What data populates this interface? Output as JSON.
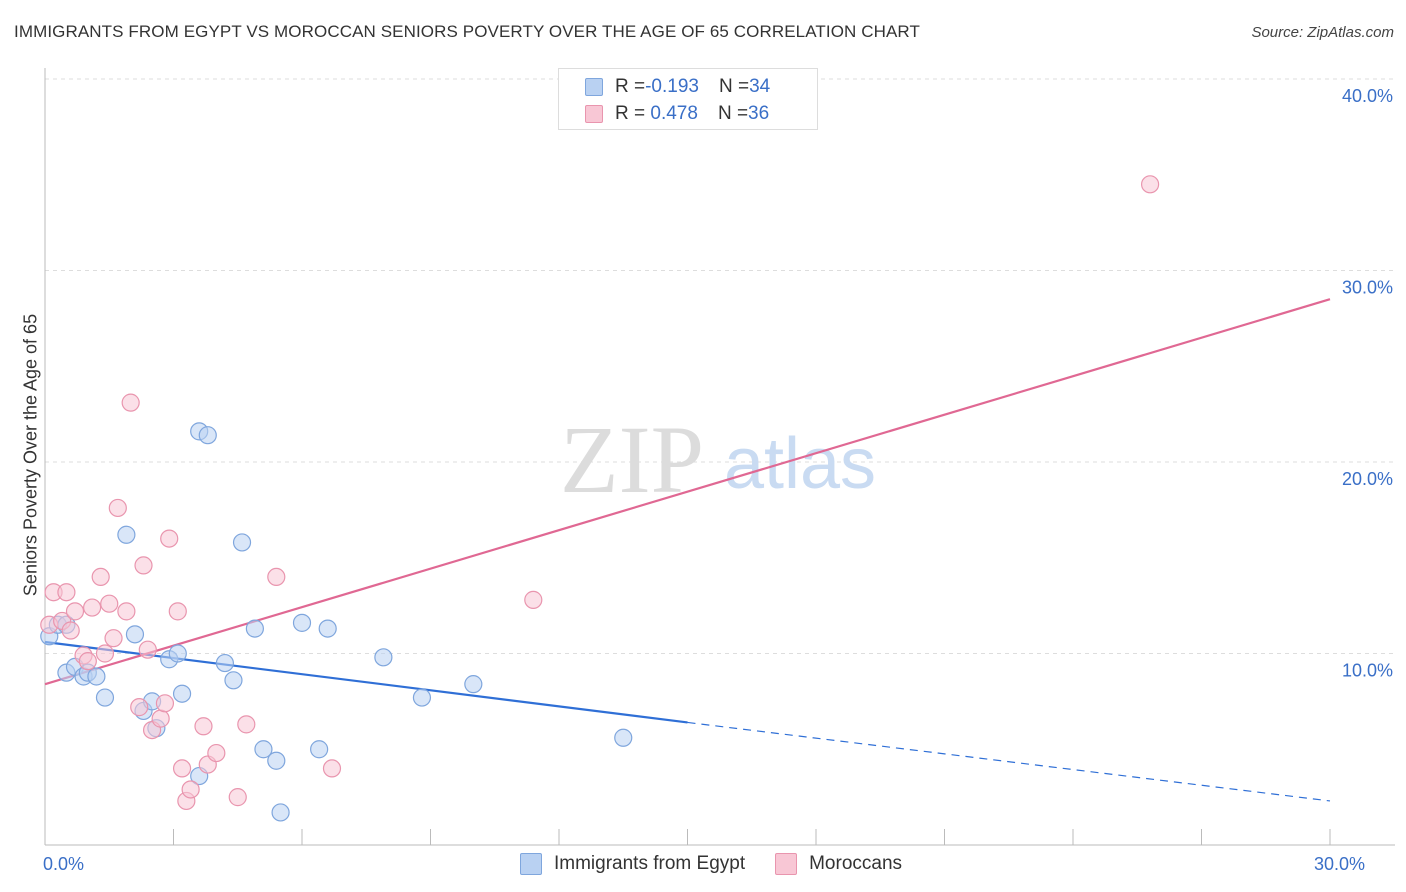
{
  "title": "IMMIGRANTS FROM EGYPT VS MOROCCAN SENIORS POVERTY OVER THE AGE OF 65 CORRELATION CHART",
  "source": "Source: ZipAtlas.com",
  "legend_top": {
    "row1": {
      "r_label": "R = ",
      "r_value": "-0.193",
      "n_label": "N = ",
      "n_value": "34"
    },
    "row2": {
      "r_label": "R = ",
      "r_value": " 0.478",
      "n_label": "N = ",
      "n_value": "36"
    }
  },
  "legend_bottom": [
    "Immigrants from Egypt",
    "Moroccans"
  ],
  "colors": {
    "blue_fill": "#b9d1f2",
    "blue_stroke": "#7fa6dd",
    "blue_line": "#2f6fd6",
    "pink_fill": "#f8c7d5",
    "pink_stroke": "#e995ae",
    "pink_line": "#e06893",
    "tick_label": "#3a6fc7"
  },
  "watermark": {
    "zip": "ZIP",
    "atlas": "atlas"
  },
  "chart_data": {
    "type": "scatter",
    "title": "IMMIGRANTS FROM EGYPT VS MOROCCAN SENIORS POVERTY OVER THE AGE OF 65 CORRELATION CHART",
    "xlabel": "",
    "ylabel": "Seniors Poverty Over the Age of 65",
    "xlim": [
      0,
      30
    ],
    "ylim": [
      0,
      40
    ],
    "x_tick_labels": [
      {
        "value": 0,
        "label": "0.0%"
      },
      {
        "value": 30,
        "label": "30.0%"
      }
    ],
    "x_minor_ticks": [
      3,
      6,
      9,
      12,
      15,
      18,
      21,
      24,
      27,
      30
    ],
    "y_ticks": [
      {
        "value": 10,
        "label": "10.0%"
      },
      {
        "value": 20,
        "label": "20.0%"
      },
      {
        "value": 30,
        "label": "30.0%"
      },
      {
        "value": 40,
        "label": "40.0%"
      }
    ],
    "grid": true,
    "series": [
      {
        "name": "Immigrants from Egypt",
        "color": "blue",
        "R": -0.193,
        "N": 34,
        "points": [
          [
            0.1,
            10.9
          ],
          [
            0.3,
            11.5
          ],
          [
            0.5,
            11.5
          ],
          [
            0.5,
            9.0
          ],
          [
            0.7,
            9.3
          ],
          [
            0.9,
            8.8
          ],
          [
            1.0,
            9.0
          ],
          [
            1.2,
            8.8
          ],
          [
            1.4,
            7.7
          ],
          [
            1.9,
            16.2
          ],
          [
            2.1,
            11.0
          ],
          [
            2.3,
            7.0
          ],
          [
            2.5,
            7.5
          ],
          [
            2.6,
            6.1
          ],
          [
            2.9,
            9.7
          ],
          [
            3.1,
            10.0
          ],
          [
            3.2,
            7.9
          ],
          [
            3.6,
            21.6
          ],
          [
            3.8,
            21.4
          ],
          [
            3.6,
            3.6
          ],
          [
            4.2,
            9.5
          ],
          [
            4.4,
            8.6
          ],
          [
            4.6,
            15.8
          ],
          [
            4.9,
            11.3
          ],
          [
            5.1,
            5.0
          ],
          [
            5.4,
            4.4
          ],
          [
            5.5,
            1.7
          ],
          [
            6.0,
            11.6
          ],
          [
            6.4,
            5.0
          ],
          [
            6.6,
            11.3
          ],
          [
            7.9,
            9.8
          ],
          [
            8.8,
            7.7
          ],
          [
            10.0,
            8.4
          ],
          [
            13.5,
            5.6
          ]
        ]
      },
      {
        "name": "Moroccans",
        "color": "pink",
        "R": 0.478,
        "N": 36,
        "points": [
          [
            0.1,
            11.5
          ],
          [
            0.2,
            13.2
          ],
          [
            0.4,
            11.7
          ],
          [
            0.5,
            13.2
          ],
          [
            0.6,
            11.2
          ],
          [
            0.7,
            12.2
          ],
          [
            0.9,
            9.9
          ],
          [
            1.0,
            9.6
          ],
          [
            1.1,
            12.4
          ],
          [
            1.3,
            14.0
          ],
          [
            1.4,
            10.0
          ],
          [
            1.5,
            12.6
          ],
          [
            1.6,
            10.8
          ],
          [
            1.7,
            17.6
          ],
          [
            1.9,
            12.2
          ],
          [
            2.0,
            23.1
          ],
          [
            2.2,
            7.2
          ],
          [
            2.3,
            14.6
          ],
          [
            2.4,
            10.2
          ],
          [
            2.5,
            6.0
          ],
          [
            2.7,
            6.6
          ],
          [
            2.8,
            7.4
          ],
          [
            2.9,
            16.0
          ],
          [
            3.1,
            12.2
          ],
          [
            3.2,
            4.0
          ],
          [
            3.3,
            2.3
          ],
          [
            3.4,
            2.9
          ],
          [
            3.7,
            6.2
          ],
          [
            3.8,
            4.2
          ],
          [
            4.0,
            4.8
          ],
          [
            4.5,
            2.5
          ],
          [
            4.7,
            6.3
          ],
          [
            5.4,
            14.0
          ],
          [
            6.7,
            4.0
          ],
          [
            11.4,
            12.8
          ],
          [
            25.8,
            34.5
          ]
        ]
      }
    ],
    "trend_lines": [
      {
        "series": "Immigrants from Egypt",
        "solid_from": [
          0,
          10.6
        ],
        "solid_to": [
          15,
          6.4
        ],
        "dashed_to": [
          30,
          2.3
        ]
      },
      {
        "series": "Moroccans",
        "solid_from": [
          0,
          8.4
        ],
        "solid_to": [
          30,
          28.5
        ]
      }
    ]
  }
}
